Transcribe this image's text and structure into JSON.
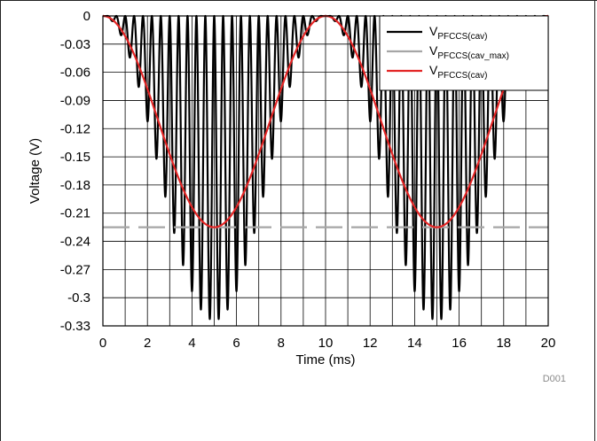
{
  "figure_id": "D001",
  "chart_data": {
    "type": "line",
    "xlabel": "Time (ms)",
    "ylabel": "Voltage (V)",
    "xlim": [
      0,
      20
    ],
    "ylim": [
      -0.33,
      0
    ],
    "x_ticks": [
      "0",
      "2",
      "4",
      "6",
      "8",
      "10",
      "12",
      "14",
      "16",
      "18",
      "20"
    ],
    "y_ticks": [
      "0",
      "-0.03",
      "-0.06",
      "-0.09",
      "-0.12",
      "-0.15",
      "-0.18",
      "-0.21",
      "-0.24",
      "-0.27",
      "-0.3",
      "-0.33"
    ],
    "grid": true,
    "legend_position": "top-right",
    "series": [
      {
        "legend_main": "V",
        "legend_sub": "PFCCS(cav)",
        "color": "#000000",
        "style": "solid",
        "description_values": {
          "oscillation_period_ms": 0.4,
          "upper_bound": 0,
          "lower_bound_peak": -0.324,
          "envelope_period_ms": 10
        }
      },
      {
        "legend_main": "V",
        "legend_sub": "PFCCS(cav_max)",
        "color": "#a6a6a6",
        "style": "dashed",
        "x": [
          0,
          20
        ],
        "y": [
          -0.225,
          -0.225
        ]
      },
      {
        "legend_main": "V",
        "legend_sub": "PFCCS(cav)",
        "color": "#e32424",
        "style": "solid",
        "x": [
          0,
          1,
          2,
          3,
          4,
          5,
          6,
          7,
          8,
          9,
          10,
          11,
          12,
          13,
          14,
          15,
          16,
          17,
          18,
          19,
          20
        ],
        "y": [
          0,
          -0.0215,
          -0.0813,
          -0.1487,
          -0.2035,
          -0.225,
          -0.2035,
          -0.1487,
          -0.0813,
          -0.0215,
          0,
          -0.0215,
          -0.0813,
          -0.1487,
          -0.2035,
          -0.225,
          -0.2035,
          -0.1487,
          -0.0813,
          -0.0215,
          0
        ]
      }
    ]
  }
}
